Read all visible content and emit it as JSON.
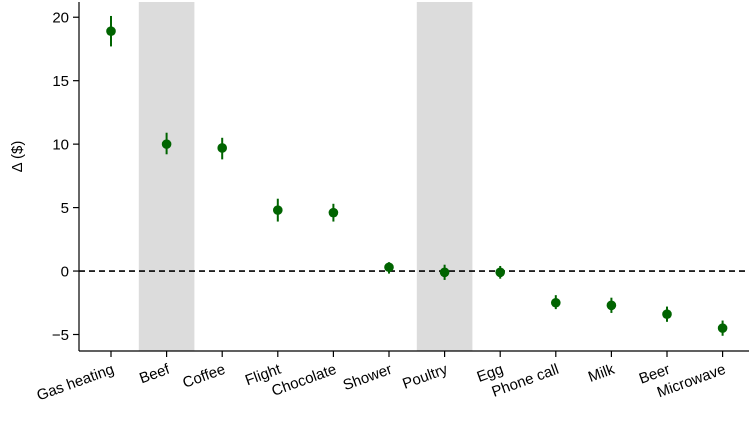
{
  "chart_data": {
    "type": "scatter",
    "title": "",
    "xlabel": "",
    "ylabel": "Δ ($)",
    "ylim": [
      -6.3,
      21.2
    ],
    "yticks": [
      -5,
      0,
      5,
      10,
      15,
      20
    ],
    "ytick_labels": [
      "−5",
      "0",
      "5",
      "10",
      "15",
      "20"
    ],
    "categories": [
      "Gas heating",
      "Beef",
      "Coffee",
      "Flight",
      "Chocolate",
      "Shower",
      "Poultry",
      "Egg",
      "Phone call",
      "Milk",
      "Beer",
      "Microwave"
    ],
    "values": [
      18.9,
      10.0,
      9.7,
      4.8,
      4.6,
      0.3,
      -0.1,
      -0.1,
      -2.5,
      -2.7,
      -3.4,
      -4.5
    ],
    "error_low": [
      17.7,
      9.2,
      8.8,
      3.9,
      3.9,
      -0.2,
      -0.7,
      -0.6,
      -3.0,
      -3.3,
      -4.0,
      -5.1
    ],
    "error_high": [
      20.1,
      10.9,
      10.5,
      5.7,
      5.3,
      0.7,
      0.5,
      0.4,
      -1.9,
      -2.1,
      -2.8,
      -3.9
    ],
    "highlighted_categories": [
      "Beef",
      "Poultry"
    ],
    "reference_line": 0,
    "colors": {
      "marker": "#006400",
      "highlight": "#dcdcdc",
      "reference": "#000000"
    },
    "grid": false,
    "legend": "none"
  }
}
